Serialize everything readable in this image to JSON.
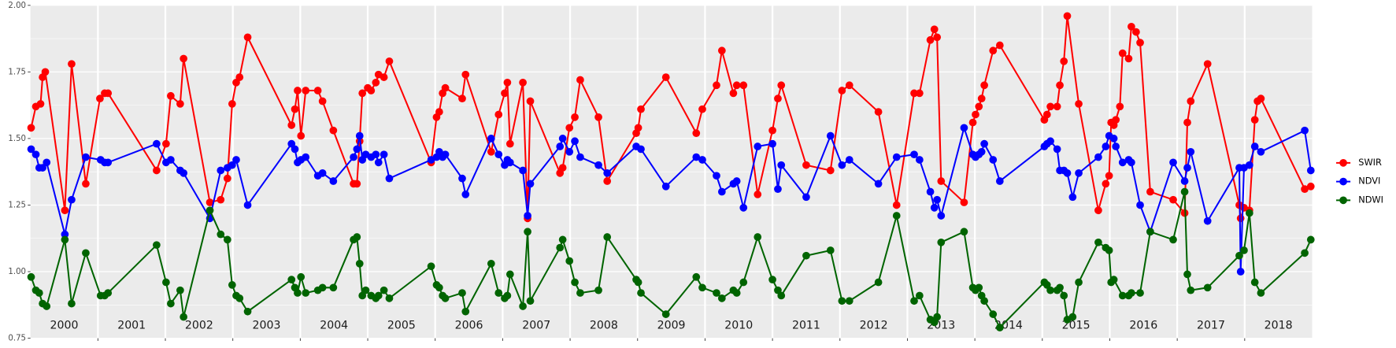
{
  "chart_data": {
    "type": "line",
    "xlim": [
      2000,
      2019
    ],
    "xticks": [
      {
        "value": 2000.5,
        "label": "2000"
      },
      {
        "value": 2001.5,
        "label": "2001"
      },
      {
        "value": 2002.5,
        "label": "2002"
      },
      {
        "value": 2003.5,
        "label": "2003"
      },
      {
        "value": 2004.5,
        "label": "2004"
      },
      {
        "value": 2005.5,
        "label": "2005"
      },
      {
        "value": 2006.5,
        "label": "2006"
      },
      {
        "value": 2007.5,
        "label": "2007"
      },
      {
        "value": 2008.5,
        "label": "2008"
      },
      {
        "value": 2009.5,
        "label": "2009"
      },
      {
        "value": 2010.5,
        "label": "2010"
      },
      {
        "value": 2011.5,
        "label": "2011"
      },
      {
        "value": 2012.5,
        "label": "2012"
      },
      {
        "value": 2013.5,
        "label": "2013"
      },
      {
        "value": 2014.5,
        "label": "2014"
      },
      {
        "value": 2015.5,
        "label": "2015"
      },
      {
        "value": 2016.5,
        "label": "2016"
      },
      {
        "value": 2017.5,
        "label": "2017"
      },
      {
        "value": 2018.5,
        "label": "2018"
      }
    ],
    "vlines": [
      2001,
      2002,
      2003,
      2004,
      2005,
      2006,
      2007,
      2008,
      2009,
      2010,
      2011,
      2012,
      2013,
      2014,
      2015,
      2016,
      2017,
      2018
    ],
    "ylim": [
      0.75,
      2.0
    ],
    "yticks": [
      0.75,
      {
        "value": 1.0,
        "label": "1.00"
      },
      1.25,
      {
        "value": 1.5,
        "label": "1.50"
      },
      1.75,
      {
        "value": 2.0,
        "label": "2.00"
      }
    ],
    "grid": true,
    "legend": "right",
    "series": [
      {
        "name": "SWIR",
        "color": "#ff0000",
        "x": [
          2000.01,
          2000.08,
          2000.15,
          2000.18,
          2000.22,
          2000.51,
          2000.61,
          2000.82,
          2001.03,
          2001.1,
          2001.15,
          2001.87,
          2002.01,
          2002.08,
          2002.22,
          2002.27,
          2002.66,
          2002.82,
          2002.92,
          2002.99,
          2003.05,
          2003.1,
          2003.22,
          2003.87,
          2003.92,
          2003.96,
          2004.01,
          2004.08,
          2004.26,
          2004.33,
          2004.49,
          2004.79,
          2004.84,
          2004.88,
          2004.92,
          2005.0,
          2005.05,
          2005.12,
          2005.16,
          2005.24,
          2005.32,
          2005.94,
          2006.02,
          2006.06,
          2006.11,
          2006.15,
          2006.4,
          2006.45,
          2006.83,
          2006.94,
          2007.03,
          2007.07,
          2007.11,
          2007.3,
          2007.37,
          2007.41,
          2007.85,
          2007.89,
          2007.99,
          2008.07,
          2008.15,
          2008.42,
          2008.55,
          2008.98,
          2009.01,
          2009.05,
          2009.42,
          2009.87,
          2009.96,
          2010.17,
          2010.25,
          2010.42,
          2010.47,
          2010.57,
          2010.78,
          2011.0,
          2011.08,
          2011.13,
          2011.5,
          2011.86,
          2012.03,
          2012.14,
          2012.57,
          2012.84,
          2013.1,
          2013.18,
          2013.34,
          2013.4,
          2013.44,
          2013.5,
          2013.84,
          2013.97,
          2014.01,
          2014.06,
          2014.1,
          2014.14,
          2014.27,
          2014.37,
          2015.03,
          2015.07,
          2015.12,
          2015.22,
          2015.26,
          2015.32,
          2015.37,
          2015.54,
          2015.83,
          2015.94,
          2015.99,
          2016.02,
          2016.06,
          2016.09,
          2016.15,
          2016.19,
          2016.28,
          2016.32,
          2016.39,
          2016.45,
          2016.6,
          2016.94,
          2017.11,
          2017.15,
          2017.2,
          2017.45,
          2017.92,
          2017.94,
          2017.99,
          2018.07,
          2018.15,
          2018.19,
          2018.24,
          2018.89,
          2018.98
        ],
        "values": [
          1.54,
          1.62,
          1.63,
          1.73,
          1.75,
          1.23,
          1.78,
          1.33,
          1.65,
          1.67,
          1.67,
          1.38,
          1.48,
          1.66,
          1.63,
          1.8,
          1.26,
          1.27,
          1.35,
          1.63,
          1.71,
          1.73,
          1.88,
          1.55,
          1.61,
          1.68,
          1.51,
          1.68,
          1.68,
          1.64,
          1.53,
          1.33,
          1.33,
          1.49,
          1.67,
          1.69,
          1.68,
          1.71,
          1.74,
          1.73,
          1.79,
          1.41,
          1.58,
          1.6,
          1.67,
          1.69,
          1.65,
          1.74,
          1.45,
          1.59,
          1.67,
          1.71,
          1.48,
          1.71,
          1.2,
          1.64,
          1.37,
          1.39,
          1.54,
          1.58,
          1.72,
          1.58,
          1.34,
          1.52,
          1.54,
          1.61,
          1.73,
          1.52,
          1.61,
          1.7,
          1.83,
          1.67,
          1.7,
          1.7,
          1.29,
          1.53,
          1.65,
          1.7,
          1.4,
          1.38,
          1.68,
          1.7,
          1.6,
          1.25,
          1.67,
          1.67,
          1.87,
          1.91,
          1.88,
          1.34,
          1.26,
          1.56,
          1.59,
          1.62,
          1.65,
          1.7,
          1.83,
          1.85,
          1.57,
          1.59,
          1.62,
          1.62,
          1.7,
          1.79,
          1.96,
          1.63,
          1.23,
          1.33,
          1.36,
          1.56,
          1.55,
          1.57,
          1.62,
          1.82,
          1.8,
          1.92,
          1.9,
          1.86,
          1.3,
          1.27,
          1.22,
          1.56,
          1.64,
          1.78,
          1.25,
          1.2,
          1.24,
          1.23,
          1.57,
          1.64,
          1.65,
          1.31,
          1.32
        ]
      },
      {
        "name": "NDVI",
        "color": "#0000ff",
        "x": [
          2000.01,
          2000.08,
          2000.13,
          2000.18,
          2000.24,
          2000.51,
          2000.61,
          2000.82,
          2001.04,
          2001.1,
          2001.15,
          2001.87,
          2002.01,
          2002.08,
          2002.22,
          2002.27,
          2002.66,
          2002.82,
          2002.92,
          2002.99,
          2003.05,
          2003.22,
          2003.87,
          2003.92,
          2003.96,
          2004.01,
          2004.08,
          2004.26,
          2004.33,
          2004.49,
          2004.79,
          2004.84,
          2004.88,
          2004.92,
          2004.97,
          2005.05,
          2005.12,
          2005.16,
          2005.24,
          2005.32,
          2005.94,
          2006.02,
          2006.06,
          2006.11,
          2006.15,
          2006.4,
          2006.45,
          2006.83,
          2006.94,
          2007.03,
          2007.07,
          2007.11,
          2007.3,
          2007.37,
          2007.41,
          2007.85,
          2007.89,
          2007.99,
          2008.07,
          2008.15,
          2008.42,
          2008.55,
          2008.98,
          2009.05,
          2009.42,
          2009.87,
          2009.96,
          2010.17,
          2010.25,
          2010.42,
          2010.47,
          2010.57,
          2010.78,
          2011.0,
          2011.08,
          2011.13,
          2011.5,
          2011.86,
          2012.03,
          2012.14,
          2012.57,
          2012.84,
          2013.1,
          2013.18,
          2013.34,
          2013.4,
          2013.44,
          2013.5,
          2013.84,
          2013.97,
          2014.01,
          2014.06,
          2014.1,
          2014.14,
          2014.27,
          2014.37,
          2015.03,
          2015.07,
          2015.12,
          2015.22,
          2015.26,
          2015.32,
          2015.37,
          2015.45,
          2015.54,
          2015.83,
          2015.94,
          2015.99,
          2016.06,
          2016.09,
          2016.19,
          2016.28,
          2016.32,
          2016.45,
          2016.6,
          2016.94,
          2017.11,
          2017.15,
          2017.2,
          2017.45,
          2017.92,
          2017.94,
          2017.99,
          2018.07,
          2018.15,
          2018.24,
          2018.89,
          2018.98
        ],
        "values": [
          1.46,
          1.44,
          1.39,
          1.39,
          1.41,
          1.14,
          1.27,
          1.43,
          1.42,
          1.41,
          1.41,
          1.48,
          1.41,
          1.42,
          1.38,
          1.37,
          1.2,
          1.38,
          1.39,
          1.4,
          1.42,
          1.25,
          1.48,
          1.46,
          1.41,
          1.42,
          1.43,
          1.36,
          1.37,
          1.34,
          1.43,
          1.46,
          1.51,
          1.42,
          1.44,
          1.43,
          1.44,
          1.41,
          1.44,
          1.35,
          1.42,
          1.43,
          1.45,
          1.43,
          1.44,
          1.35,
          1.29,
          1.5,
          1.44,
          1.4,
          1.42,
          1.41,
          1.38,
          1.21,
          1.33,
          1.47,
          1.5,
          1.45,
          1.49,
          1.43,
          1.4,
          1.37,
          1.47,
          1.46,
          1.32,
          1.43,
          1.42,
          1.36,
          1.3,
          1.33,
          1.34,
          1.24,
          1.47,
          1.48,
          1.31,
          1.4,
          1.28,
          1.51,
          1.4,
          1.42,
          1.33,
          1.43,
          1.44,
          1.42,
          1.3,
          1.24,
          1.27,
          1.21,
          1.54,
          1.44,
          1.43,
          1.44,
          1.45,
          1.48,
          1.42,
          1.34,
          1.47,
          1.48,
          1.49,
          1.46,
          1.38,
          1.38,
          1.37,
          1.28,
          1.37,
          1.43,
          1.47,
          1.51,
          1.5,
          1.47,
          1.41,
          1.42,
          1.41,
          1.25,
          1.15,
          1.41,
          1.34,
          1.39,
          1.45,
          1.19,
          1.39,
          1.0,
          1.39,
          1.4,
          1.47,
          1.45,
          1.53,
          1.38
        ]
      },
      {
        "name": "NDWI",
        "color": "#006400",
        "x": [
          2000.01,
          2000.08,
          2000.13,
          2000.18,
          2000.24,
          2000.51,
          2000.61,
          2000.82,
          2001.04,
          2001.1,
          2001.15,
          2001.87,
          2002.01,
          2002.08,
          2002.22,
          2002.27,
          2002.66,
          2002.82,
          2002.92,
          2002.99,
          2003.05,
          2003.1,
          2003.22,
          2003.87,
          2003.92,
          2003.96,
          2004.01,
          2004.08,
          2004.26,
          2004.33,
          2004.49,
          2004.79,
          2004.84,
          2004.88,
          2004.92,
          2004.97,
          2005.05,
          2005.12,
          2005.16,
          2005.24,
          2005.32,
          2005.94,
          2006.02,
          2006.06,
          2006.11,
          2006.15,
          2006.4,
          2006.45,
          2006.83,
          2006.94,
          2007.03,
          2007.07,
          2007.11,
          2007.3,
          2007.37,
          2007.41,
          2007.85,
          2007.89,
          2007.99,
          2008.07,
          2008.15,
          2008.42,
          2008.55,
          2008.98,
          2009.01,
          2009.05,
          2009.42,
          2009.87,
          2009.96,
          2010.17,
          2010.25,
          2010.42,
          2010.47,
          2010.57,
          2010.78,
          2011.0,
          2011.08,
          2011.13,
          2011.5,
          2011.86,
          2012.03,
          2012.14,
          2012.57,
          2012.84,
          2013.1,
          2013.18,
          2013.34,
          2013.4,
          2013.44,
          2013.5,
          2013.84,
          2013.97,
          2014.01,
          2014.06,
          2014.1,
          2014.14,
          2014.27,
          2014.37,
          2015.03,
          2015.07,
          2015.12,
          2015.22,
          2015.26,
          2015.32,
          2015.37,
          2015.45,
          2015.54,
          2015.83,
          2015.94,
          2015.99,
          2016.02,
          2016.06,
          2016.19,
          2016.28,
          2016.32,
          2016.45,
          2016.6,
          2016.94,
          2017.11,
          2017.15,
          2017.2,
          2017.45,
          2017.92,
          2017.99,
          2018.07,
          2018.15,
          2018.24,
          2018.89,
          2018.98
        ],
        "values": [
          0.98,
          0.93,
          0.92,
          0.88,
          0.87,
          1.12,
          0.88,
          1.07,
          0.91,
          0.91,
          0.92,
          1.1,
          0.96,
          0.88,
          0.93,
          0.83,
          1.23,
          1.14,
          1.12,
          0.95,
          0.91,
          0.9,
          0.85,
          0.97,
          0.94,
          0.92,
          0.98,
          0.92,
          0.93,
          0.94,
          0.94,
          1.12,
          1.13,
          1.03,
          0.91,
          0.93,
          0.91,
          0.9,
          0.91,
          0.93,
          0.9,
          1.02,
          0.95,
          0.94,
          0.91,
          0.9,
          0.92,
          0.85,
          1.03,
          0.92,
          0.9,
          0.91,
          0.99,
          0.87,
          1.15,
          0.89,
          1.09,
          1.12,
          1.04,
          0.96,
          0.92,
          0.93,
          1.13,
          0.97,
          0.96,
          0.92,
          0.84,
          0.98,
          0.94,
          0.92,
          0.9,
          0.93,
          0.92,
          0.96,
          1.13,
          0.97,
          0.93,
          0.91,
          1.06,
          1.08,
          0.89,
          0.89,
          0.96,
          1.21,
          0.89,
          0.91,
          0.82,
          0.81,
          0.83,
          1.11,
          1.15,
          0.94,
          0.93,
          0.94,
          0.91,
          0.89,
          0.84,
          0.79,
          0.96,
          0.95,
          0.93,
          0.93,
          0.94,
          0.91,
          0.82,
          0.83,
          0.96,
          1.11,
          1.09,
          1.08,
          0.96,
          0.97,
          0.91,
          0.91,
          0.92,
          0.92,
          1.15,
          1.12,
          1.3,
          0.99,
          0.93,
          0.94,
          1.06,
          1.08,
          1.22,
          0.96,
          0.92,
          1.07,
          1.12
        ]
      }
    ]
  }
}
